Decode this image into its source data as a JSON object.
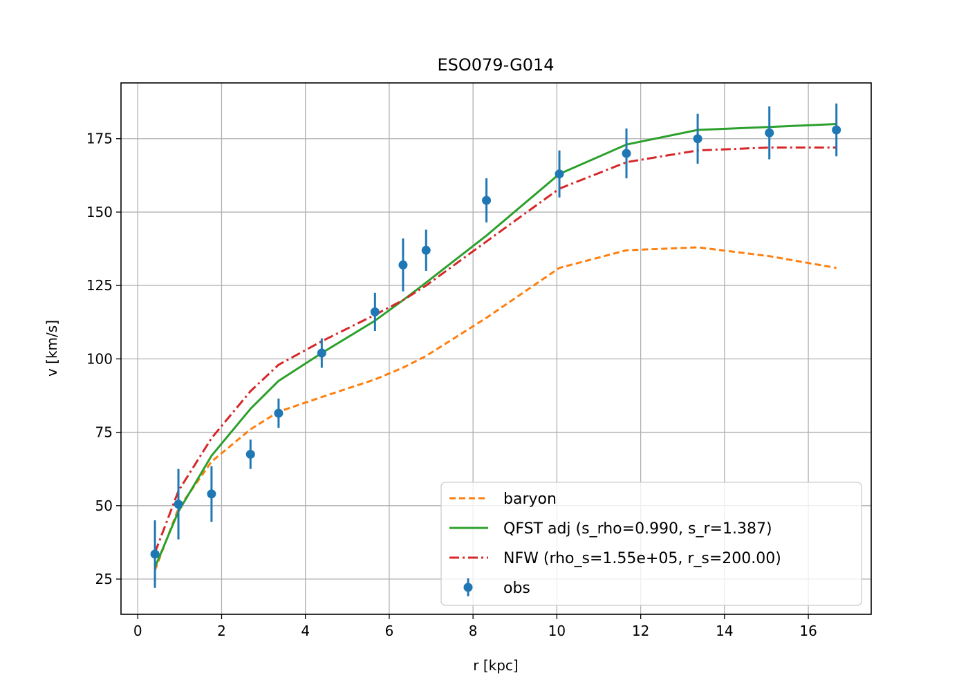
{
  "chart_data": {
    "type": "line",
    "title": "ESO079-G014",
    "xlabel": "r [kpc]",
    "ylabel": "v [km/s]",
    "xlim": [
      -0.4,
      17.5
    ],
    "ylim": [
      13,
      194
    ],
    "xticks": [
      0,
      2,
      4,
      6,
      8,
      10,
      12,
      14,
      16
    ],
    "yticks": [
      25,
      50,
      75,
      100,
      125,
      150,
      175
    ],
    "grid": true,
    "legend_position": "lower right",
    "x": [
      0.41,
      0.97,
      1.76,
      2.69,
      3.36,
      4.39,
      5.66,
      6.33,
      6.88,
      8.32,
      10.06,
      11.66,
      13.36,
      15.07,
      16.67
    ],
    "series": [
      {
        "name": "baryon",
        "kind": "line",
        "style": "dashed",
        "color": "#ff7f0e",
        "values": [
          28,
          49,
          65,
          76,
          82,
          87,
          93,
          97,
          101,
          114,
          131,
          137,
          138,
          135,
          131
        ]
      },
      {
        "name": "QFST adj (s_rho=0.990, s_r=1.387)",
        "kind": "line",
        "style": "solid",
        "color": "#2ca02c",
        "values": [
          29,
          48,
          67,
          83,
          92.5,
          102,
          113,
          120,
          126,
          142,
          163,
          173,
          178,
          179,
          180
        ]
      },
      {
        "name": "NFW (rho_s=1.55e+05, r_s=200.00)",
        "kind": "line",
        "style": "dashdot",
        "color": "#d62728",
        "values": [
          34,
          55,
          73,
          89,
          98,
          106,
          115,
          120,
          125,
          140,
          158,
          167,
          171,
          172,
          172
        ]
      },
      {
        "name": "obs",
        "kind": "errorbar",
        "color": "#1f77b4",
        "values": [
          33.5,
          50.5,
          54,
          67.5,
          81.5,
          102,
          116,
          132,
          137,
          154,
          163,
          170,
          175,
          177,
          178
        ],
        "errors": [
          11.5,
          12,
          9.5,
          5,
          5,
          5,
          6.5,
          9,
          7,
          7.5,
          8,
          8.5,
          8.5,
          9,
          9
        ]
      }
    ]
  }
}
